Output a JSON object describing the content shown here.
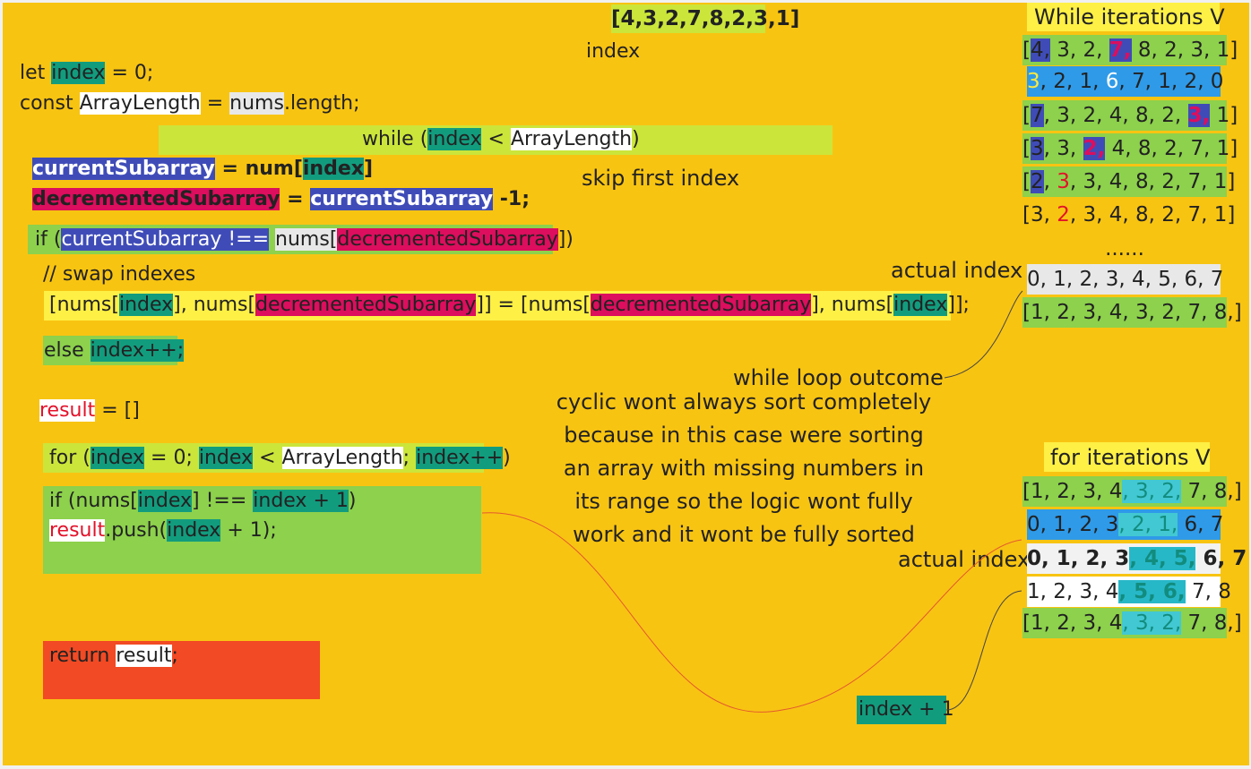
{
  "top_array": "[4,3,2,7,8,2,3,1]",
  "index_label": "index",
  "code": {
    "let_kw": "let",
    "index": "index",
    "eq_zero": "= 0;",
    "const_kw": "const",
    "array_length": "ArrayLength",
    "equals": "=",
    "nums": "nums",
    "dot_length": ".length;",
    "while_open": "while (",
    "lt": "<",
    "close_paren": ")",
    "current_subarray": "currentSubarray",
    "eq_num": "= num[",
    "close_bracket": "]",
    "decremented_subarray": "decrementedSubarray",
    "minus_one": "-1;",
    "if_open": "if (",
    "not_eq_nums": "!==",
    "nums_open": "nums[",
    "close_bp": "])",
    "swap_comment": "// swap indexes",
    "swap_open": "[nums[",
    "bracket_comma_nums": "], nums[",
    "assign_mid": "]] = [nums[",
    "swap_end": "]];",
    "else_kw": "else",
    "index_inc": "index++;",
    "result": "result",
    "eq_empty": "= []",
    "for_open": "for (",
    "semi": ";",
    "index_pp": "index++",
    "if_nums": "if (nums[",
    "neq": "] !==",
    "index_plus_one": "index + 1",
    "push_open": ".push(",
    "plus_one_close": "+ 1);",
    "return_kw": "return",
    "semicolon": ";"
  },
  "notes": {
    "skip_first_index": "skip first index",
    "actual_index_1": "actual index",
    "while_loop_outcome": "while loop outcome",
    "explanation": [
      "cyclic wont always sort completely",
      "because in this case were sorting",
      "an array with missing numbers in",
      "its range so the logic wont fully",
      "work and it wont be fully sorted"
    ],
    "actual_index_2": "actual index",
    "index_plus_one_box": "index + 1"
  },
  "while_panel": {
    "title": "While iterations V",
    "dots": "......",
    "actual_row": "0, 1, 2, 3, 4, 5, 6, 7",
    "outcome_row": "[1, 2, 3, 4, 3, 2, 7, 8,]"
  },
  "for_panel": {
    "title": "for iterations V"
  },
  "colors": {
    "board": "#f8c412",
    "teal": "#129c7e",
    "blue": "#3f4cb8",
    "crimson": "#dc0e5d",
    "lime": "#cce53a",
    "green": "#8dd14c",
    "red_box": "#f24a24",
    "cyan": "#42c8d2",
    "sky": "#2f9ae8"
  }
}
